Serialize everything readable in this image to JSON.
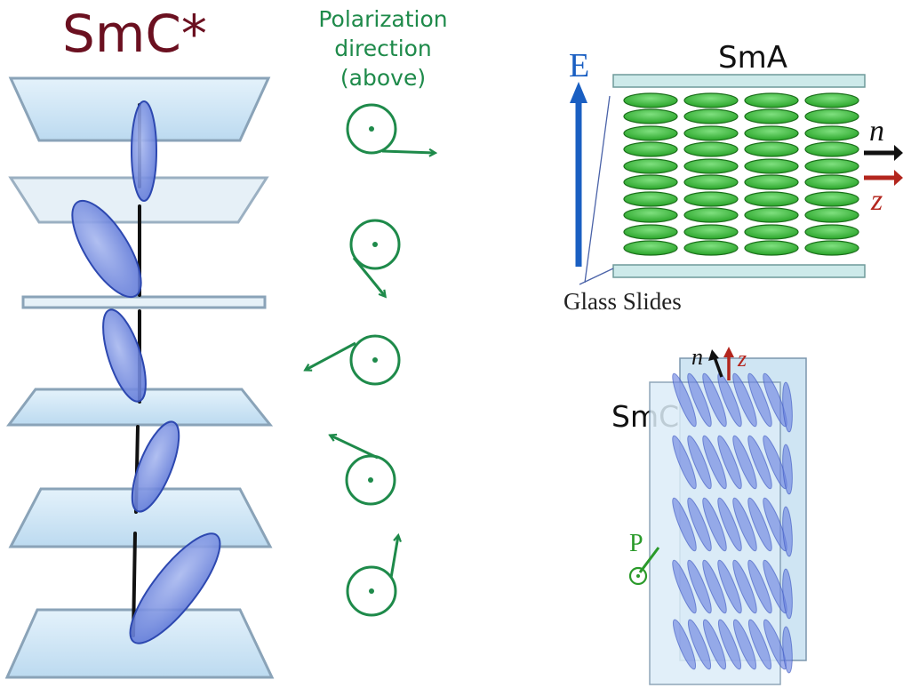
{
  "smc_star": {
    "title": "SmC*",
    "title_color": "#6b1020",
    "plate_fill": "#cfe6f5",
    "plate_edge": "#8aa3b8",
    "molecule_fill": "#7b93e0",
    "molecule_edge": "#2d48b0",
    "axis_color": "#111111"
  },
  "polarization": {
    "title_lines": [
      "Polarization",
      "direction",
      "(above)"
    ],
    "color": "#1e8a4a"
  },
  "sma": {
    "title": "SmA",
    "field_label": "E",
    "field_color": "#1a5fc2",
    "glass_label": "Glass Slides",
    "n_label": "n",
    "z_label": "z",
    "z_color": "#b3261e",
    "molecule_fill": "#3fbf3f",
    "molecule_edge": "#1b6e1b",
    "slide_fill": "#cdeaea"
  },
  "smc": {
    "title": "SmC",
    "n_label": "n",
    "z_label": "z",
    "p_label": "P",
    "z_color": "#b3261e",
    "p_color": "#2a9a2a",
    "molecule_fill": "#6f86e0",
    "plate_fill": "#cfe5f3"
  }
}
